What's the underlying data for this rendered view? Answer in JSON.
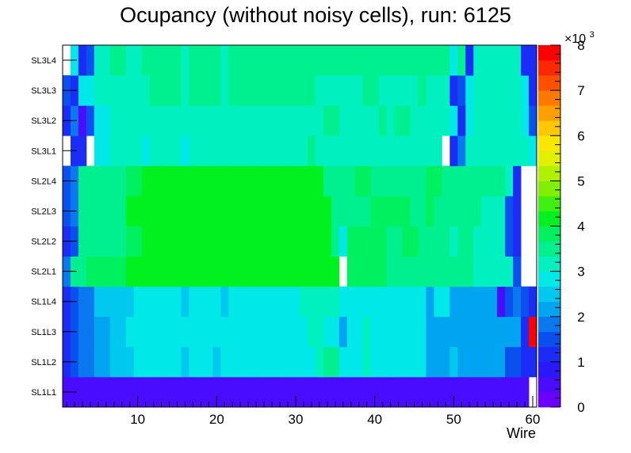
{
  "chart_data": {
    "type": "heatmap",
    "title": "Ocupancy (without noisy cells), run: 6125",
    "xlabel": "Wire",
    "x_range": [
      0.5,
      60.5
    ],
    "x_ticks": [
      10,
      20,
      30,
      40,
      50,
      60
    ],
    "y_categories": [
      "SL1L1",
      "SL1L2",
      "SL1L3",
      "SL1L4",
      "SL2L1",
      "SL2L2",
      "SL2L3",
      "SL2L4",
      "SL3L1",
      "SL3L2",
      "SL3L3",
      "SL3L4"
    ],
    "z_range": [
      0,
      8000
    ],
    "z_ticks": [
      0,
      1,
      2,
      3,
      4,
      5,
      6,
      7,
      8
    ],
    "z_multiplier": "×10",
    "z_multiplier_exp": "3",
    "palette": [
      "#6a00ff",
      "#4a0cff",
      "#2a18ff",
      "#1a2cf5",
      "#0a50ee",
      "#0a78ee",
      "#00a4f0",
      "#00c8ee",
      "#00e8e8",
      "#00f0c0",
      "#00f090",
      "#00f060",
      "#00f020",
      "#40f010",
      "#80f000",
      "#b0f000",
      "#e0f000",
      "#f8e800",
      "#ffc800",
      "#ffa000",
      "#ff7800",
      "#ff5000",
      "#ff2800",
      "#ff0000"
    ],
    "z": [
      [
        0.4,
        0.4,
        0.4,
        0.4,
        0.4,
        0.4,
        0.4,
        0.4,
        0.4,
        0.4,
        0.4,
        0.4,
        0.4,
        0.4,
        0.4,
        0.4,
        0.4,
        0.4,
        0.4,
        0.4,
        0.4,
        0.4,
        0.4,
        0.4,
        0.4,
        0.4,
        0.4,
        0.4,
        0.4,
        0.4,
        0.4,
        0.4,
        0.4,
        0.4,
        0.4,
        0.4,
        0.4,
        0.4,
        0.4,
        0.4,
        0.4,
        0.4,
        0.4,
        0.4,
        0.4,
        0.4,
        0.4,
        0.4,
        0.4,
        0.4,
        0.4,
        0.4,
        0.4,
        0.4,
        0.4,
        0.4,
        0.4,
        0.4,
        0.4,
        0
      ],
      [
        1.0,
        1.4,
        1.8,
        1.8,
        2.2,
        2.2,
        2.5,
        2.5,
        2.5,
        2.7,
        2.7,
        2.7,
        2.7,
        2.7,
        2.7,
        2.5,
        2.7,
        2.7,
        2.7,
        2.5,
        2.7,
        2.7,
        2.7,
        2.7,
        2.7,
        2.7,
        2.7,
        2.7,
        2.7,
        2.7,
        2.7,
        2.7,
        3.1,
        3.4,
        3.4,
        2.9,
        2.9,
        2.9,
        3.1,
        2.7,
        2.7,
        2.7,
        2.7,
        2.7,
        2.7,
        2.7,
        2.3,
        2.3,
        2.3,
        2.5,
        2.0,
        2.0,
        2.0,
        2.0,
        2.0,
        2.0,
        1.5,
        1.5,
        1.2,
        1.0
      ],
      [
        1.2,
        1.5,
        1.8,
        1.8,
        2.2,
        2.2,
        2.6,
        2.6,
        2.9,
        2.9,
        2.9,
        2.9,
        2.9,
        2.9,
        2.7,
        2.7,
        2.7,
        2.9,
        2.7,
        2.7,
        2.7,
        2.9,
        2.9,
        2.9,
        2.9,
        2.9,
        2.9,
        2.9,
        2.9,
        2.9,
        2.9,
        3.1,
        3.3,
        2.9,
        2.9,
        2.3,
        2.9,
        2.9,
        3.1,
        2.7,
        2.7,
        2.7,
        2.7,
        2.7,
        2.7,
        2.7,
        2.3,
        2.3,
        2.3,
        2.3,
        2.1,
        2.1,
        2.1,
        2.1,
        2.1,
        2.1,
        2.1,
        2.1,
        1.2,
        7.8
      ],
      [
        1.1,
        1.4,
        1.8,
        1.8,
        2.4,
        2.4,
        2.6,
        2.6,
        2.6,
        2.8,
        2.8,
        2.8,
        2.8,
        2.8,
        2.8,
        2.6,
        2.8,
        2.8,
        2.8,
        2.8,
        2.6,
        2.8,
        2.8,
        2.8,
        2.8,
        2.8,
        2.8,
        2.8,
        2.8,
        2.8,
        3.0,
        3.0,
        3.0,
        3.2,
        3.2,
        2.8,
        2.8,
        2.8,
        2.8,
        2.8,
        2.8,
        2.8,
        2.8,
        2.8,
        2.8,
        2.8,
        2.2,
        2.8,
        2.8,
        2.2,
        2.2,
        2.2,
        2.2,
        2.2,
        2.2,
        0.6,
        1.5,
        1.8,
        1.4,
        1.0
      ],
      [
        1.8,
        3.4,
        3.4,
        3.8,
        3.8,
        3.8,
        3.8,
        3.8,
        4.0,
        4.0,
        4.0,
        4.0,
        4.0,
        4.0,
        4.0,
        4.0,
        4.0,
        4.0,
        4.0,
        4.0,
        4.0,
        4.0,
        4.0,
        4.0,
        4.0,
        4.0,
        4.0,
        4.0,
        4.0,
        4.0,
        4.0,
        4.0,
        4.0,
        4.0,
        4.0,
        0,
        3.8,
        3.8,
        3.8,
        3.8,
        3.8,
        3.6,
        3.6,
        3.6,
        3.6,
        3.6,
        3.6,
        3.4,
        3.4,
        3.4,
        3.4,
        3.4,
        3.2,
        3.2,
        3.2,
        3.0,
        3.0,
        1.4,
        0,
        0
      ],
      [
        1.0,
        1.4,
        3.4,
        3.6,
        3.6,
        3.6,
        3.6,
        3.6,
        3.8,
        3.8,
        4.0,
        4.0,
        4.0,
        4.0,
        4.0,
        4.0,
        4.0,
        4.0,
        4.0,
        4.0,
        4.0,
        4.0,
        4.0,
        4.0,
        4.0,
        4.0,
        4.0,
        4.0,
        4.0,
        4.0,
        4.0,
        4.0,
        4.0,
        4.0,
        3.6,
        2.9,
        3.8,
        3.8,
        3.8,
        3.8,
        3.8,
        3.5,
        3.5,
        3.8,
        3.8,
        3.5,
        3.5,
        3.5,
        3.5,
        3.3,
        3.5,
        3.5,
        3.3,
        3.3,
        3.3,
        3.3,
        1.5,
        1.2,
        0,
        0
      ],
      [
        1.4,
        1.8,
        3.4,
        3.4,
        3.6,
        3.6,
        3.6,
        3.6,
        4.0,
        4.0,
        4.0,
        4.0,
        4.0,
        4.0,
        4.0,
        4.0,
        4.0,
        4.0,
        4.0,
        4.0,
        4.0,
        4.0,
        4.0,
        4.0,
        4.0,
        4.0,
        4.0,
        4.0,
        4.0,
        4.0,
        4.0,
        4.0,
        4.0,
        4.0,
        3.6,
        3.6,
        3.6,
        3.6,
        3.6,
        3.8,
        3.8,
        3.8,
        3.8,
        3.8,
        3.6,
        3.6,
        3.8,
        3.6,
        3.6,
        3.6,
        3.4,
        3.6,
        3.6,
        3.3,
        3.3,
        3.3,
        1.5,
        1.2,
        0,
        0
      ],
      [
        1.4,
        1.8,
        3.4,
        3.6,
        3.6,
        3.6,
        3.6,
        3.6,
        3.8,
        3.8,
        4.0,
        4.0,
        4.0,
        4.0,
        4.0,
        4.0,
        4.0,
        4.0,
        4.0,
        4.0,
        4.0,
        4.0,
        4.0,
        4.0,
        4.0,
        4.0,
        4.0,
        4.0,
        4.0,
        4.0,
        4.0,
        4.0,
        4.0,
        3.6,
        3.6,
        3.6,
        3.6,
        3.8,
        3.8,
        3.6,
        3.6,
        3.6,
        3.6,
        3.6,
        3.6,
        3.6,
        3.8,
        3.8,
        3.6,
        3.6,
        3.6,
        3.6,
        3.6,
        3.6,
        3.6,
        3.6,
        3.3,
        1.0,
        0,
        0
      ],
      [
        0,
        1.1,
        1.2,
        0,
        2.9,
        2.9,
        3.1,
        3.1,
        3.1,
        3.1,
        2.9,
        3.1,
        3.1,
        3.1,
        3.1,
        2.9,
        3.1,
        3.1,
        3.1,
        3.1,
        3.1,
        3.1,
        3.1,
        3.1,
        3.1,
        3.1,
        3.1,
        3.1,
        3.1,
        3.1,
        3.1,
        3.5,
        3.1,
        3.1,
        3.1,
        3.1,
        3.1,
        3.1,
        3.1,
        3.1,
        3.1,
        3.1,
        3.1,
        3.1,
        3.1,
        3.1,
        3.1,
        3.1,
        0,
        1.2,
        1.8,
        3.1,
        3.1,
        3.1,
        3.1,
        3.1,
        3.1,
        3.1,
        3.1,
        2.7
      ],
      [
        1.0,
        1.8,
        0.6,
        1.4,
        2.8,
        2.8,
        3.2,
        3.2,
        3.2,
        3.0,
        3.0,
        3.3,
        3.3,
        3.3,
        3.3,
        3.0,
        3.3,
        3.3,
        3.3,
        3.3,
        3.0,
        3.3,
        3.3,
        3.3,
        3.3,
        3.3,
        3.3,
        3.3,
        3.3,
        3.3,
        3.3,
        3.3,
        3.3,
        3.6,
        3.6,
        3.3,
        3.3,
        3.3,
        3.3,
        3.3,
        3.5,
        3.3,
        3.6,
        3.6,
        3.3,
        3.3,
        3.3,
        3.3,
        3.3,
        2.8,
        1.2,
        2.8,
        3.0,
        3.0,
        3.0,
        3.0,
        3.0,
        3.0,
        2.8,
        1.4
      ],
      [
        1.4,
        1.0,
        2.8,
        2.8,
        3.0,
        3.0,
        3.3,
        3.3,
        3.3,
        3.3,
        3.3,
        3.5,
        3.5,
        3.5,
        3.5,
        3.3,
        3.5,
        3.5,
        3.5,
        3.5,
        3.3,
        3.5,
        3.5,
        3.5,
        3.5,
        3.5,
        3.5,
        3.5,
        3.5,
        3.5,
        3.5,
        3.5,
        3.3,
        3.3,
        3.3,
        3.3,
        3.3,
        3.3,
        3.5,
        3.5,
        3.3,
        3.3,
        3.3,
        3.3,
        3.3,
        3.5,
        3.3,
        3.3,
        3.3,
        1.2,
        1.4,
        2.8,
        3.0,
        3.0,
        3.0,
        3.0,
        3.0,
        3.0,
        2.8,
        1.2
      ],
      [
        0,
        2.8,
        1.0,
        1.4,
        3.2,
        3.2,
        3.4,
        3.4,
        3.2,
        3.2,
        3.4,
        3.4,
        3.4,
        3.4,
        3.4,
        3.2,
        3.4,
        3.4,
        3.4,
        3.4,
        3.2,
        3.4,
        3.4,
        3.4,
        3.4,
        3.4,
        3.4,
        3.4,
        3.4,
        3.4,
        3.4,
        3.4,
        3.4,
        3.4,
        3.4,
        3.4,
        3.6,
        3.4,
        3.4,
        3.4,
        3.4,
        3.4,
        3.4,
        3.4,
        3.4,
        3.4,
        3.4,
        3.4,
        3.4,
        2.8,
        3.6,
        1.2,
        3.0,
        3.0,
        3.0,
        3.0,
        3.0,
        3.0,
        1.2,
        1.0
      ]
    ]
  }
}
